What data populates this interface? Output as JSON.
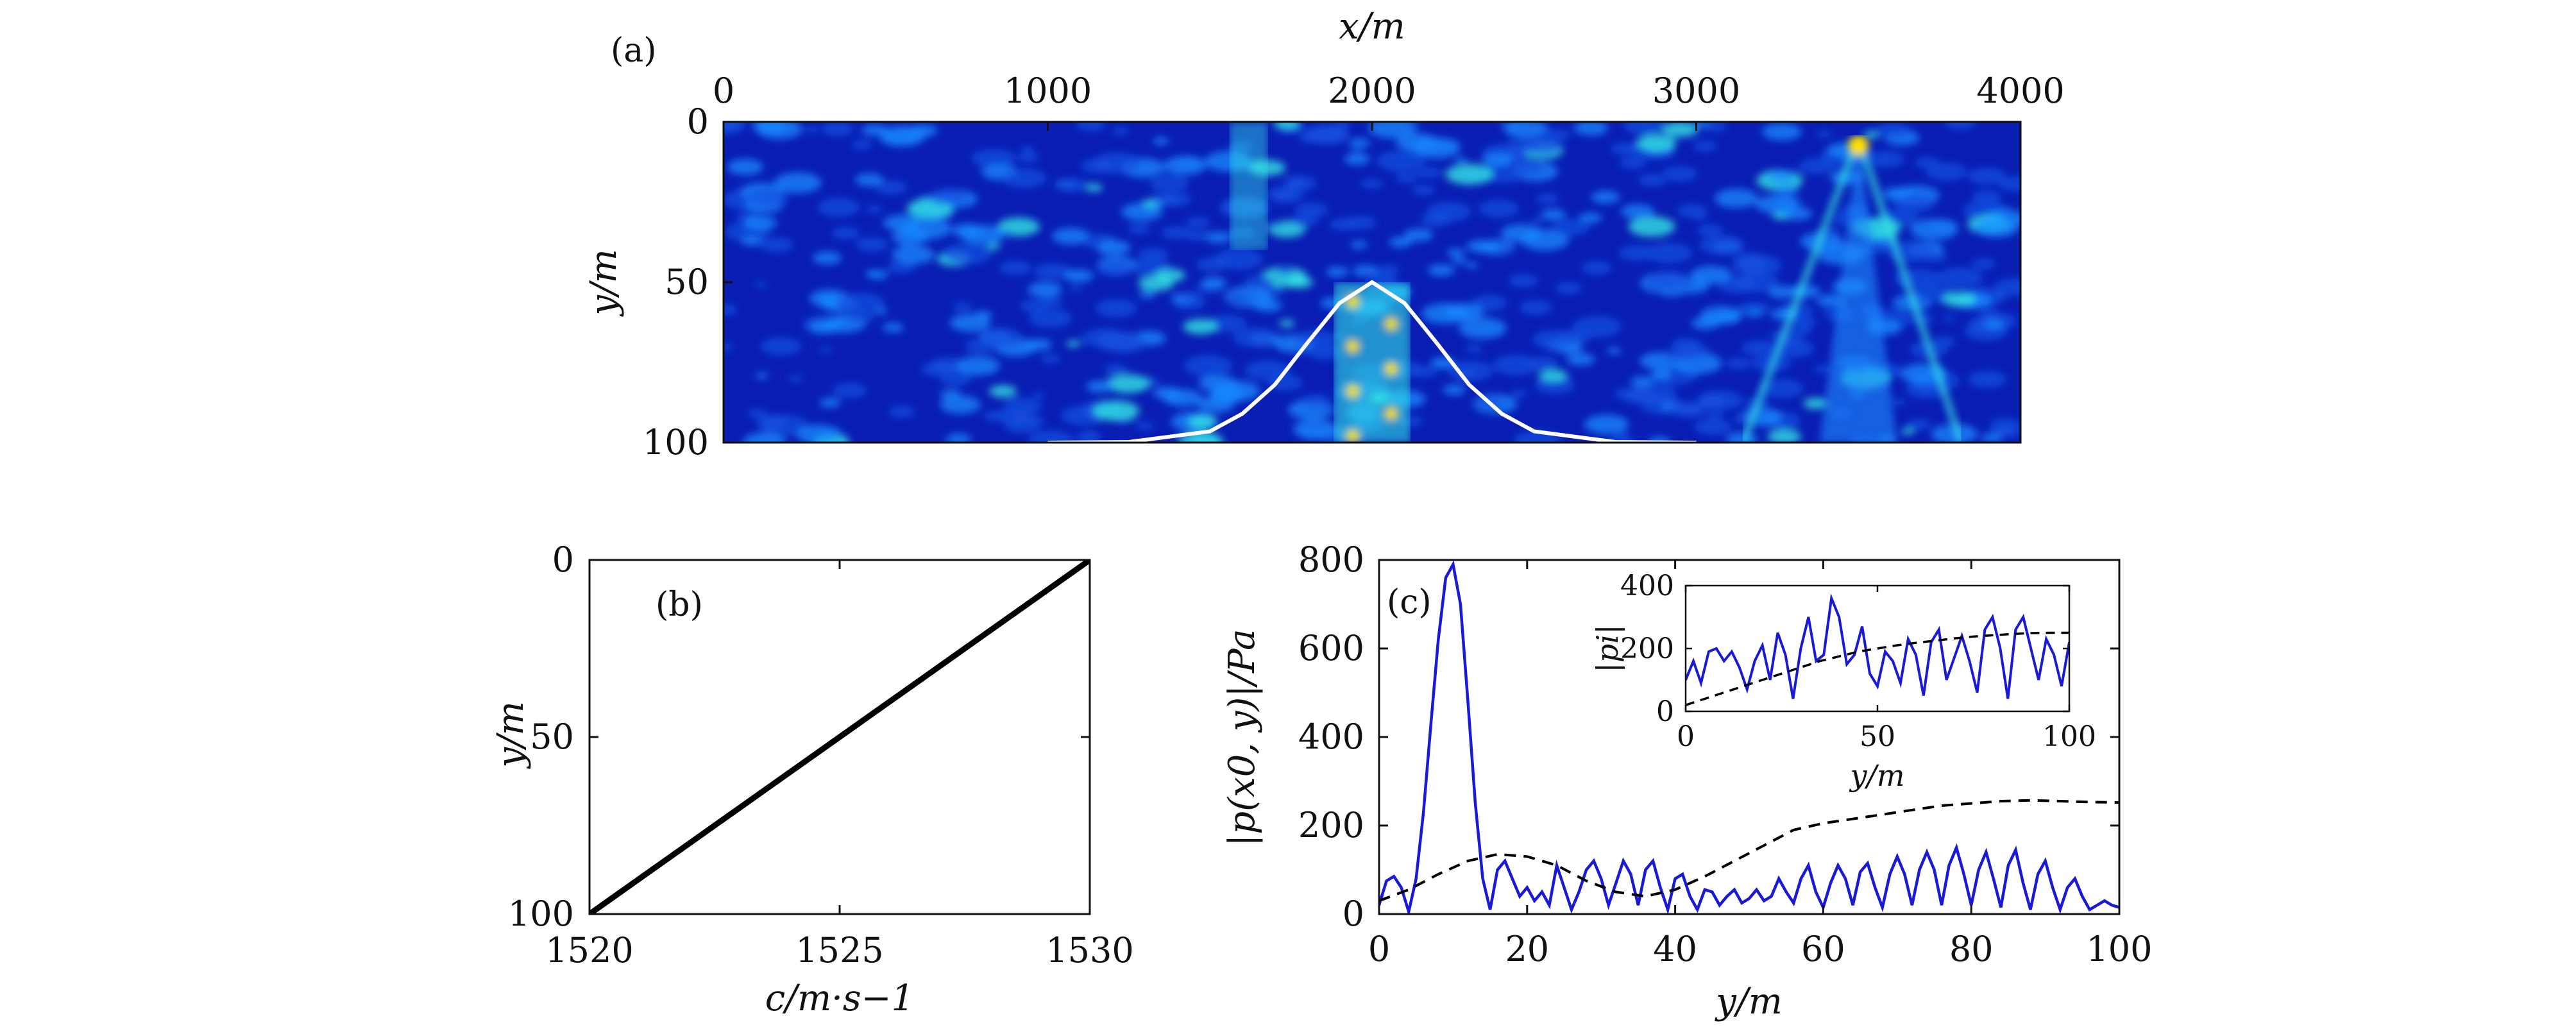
{
  "figure": {
    "panels": [
      {
        "id": "a",
        "label": "(a)"
      },
      {
        "id": "b",
        "label": "(b)"
      },
      {
        "id": "c",
        "label": "(c)"
      }
    ]
  },
  "colors": {
    "heatmap_low": "#0a1eb4",
    "heatmap_mid": "#1a8cff",
    "heatmap_high": "#36f0e6",
    "heatmap_hot": "#ffe000",
    "seamount_line": "#ffffff",
    "field_line": "#1a1ad6",
    "reference_line": "#000000",
    "profile_line": "#000000"
  },
  "chart_data": [
    {
      "id": "a",
      "type": "heatmap",
      "title": "",
      "xlabel": "x/m",
      "ylabel": "y/m",
      "x_axis_position": "top",
      "y_inverted": true,
      "xlim": [
        0,
        4000
      ],
      "ylim": [
        0,
        100
      ],
      "xticks": [
        0,
        1000,
        2000,
        3000,
        4000
      ],
      "yticks": [
        0,
        50,
        100
      ],
      "colormap": "jet",
      "overlay": {
        "type": "line",
        "shape": "gaussian",
        "color": "#ffffff",
        "peak_x": 2000,
        "peak_y": 50,
        "base_y": 100,
        "x": [
          1000,
          1250,
          1500,
          1600,
          1700,
          1800,
          1900,
          2000,
          2100,
          2200,
          2300,
          2400,
          2500,
          2750,
          3000
        ],
        "y": [
          100,
          99.8,
          96.5,
          91,
          82,
          69,
          56.5,
          50,
          56.5,
          69,
          82,
          91,
          96.5,
          99.8,
          100
        ]
      },
      "bright_features": [
        {
          "x": 2000,
          "y_range": [
            50,
            100
          ],
          "intensity": "high"
        },
        {
          "x": 3500,
          "y_range": [
            0,
            100
          ],
          "intensity": "high",
          "apex_y": 5
        },
        {
          "x": 1620,
          "y_range": [
            0,
            40
          ],
          "intensity": "medium"
        }
      ]
    },
    {
      "id": "b",
      "type": "line",
      "title": "",
      "xlabel": "c/m·s−1",
      "ylabel": "y/m",
      "y_inverted": true,
      "xlim": [
        1520,
        1530
      ],
      "ylim": [
        0,
        100
      ],
      "xticks": [
        1520,
        1525,
        1530
      ],
      "yticks": [
        0,
        50,
        100
      ],
      "series": [
        {
          "x": [
            1520,
            1530
          ],
          "y": [
            100,
            0
          ],
          "color": "#000000",
          "style": "solid"
        }
      ]
    },
    {
      "id": "c",
      "type": "line",
      "title": "",
      "xlabel": "y/m",
      "ylabel": "|p(x0, y)|/Pa",
      "xlim": [
        0,
        100
      ],
      "ylim": [
        0,
        800
      ],
      "xticks": [
        0,
        20,
        40,
        60,
        80,
        100
      ],
      "yticks": [
        0,
        200,
        400,
        600,
        800
      ],
      "series": [
        {
          "color": "#1a1ad6",
          "style": "solid",
          "x": [
            0,
            1,
            2,
            3,
            4,
            5,
            6,
            7,
            8,
            9,
            10,
            11,
            12,
            13,
            14,
            15,
            16,
            17,
            18,
            19,
            20,
            21,
            22,
            23,
            24,
            25,
            26,
            27,
            28,
            29,
            30,
            31,
            32,
            33,
            34,
            35,
            36,
            37,
            38,
            39,
            40,
            41,
            42,
            43,
            44,
            45,
            46,
            47,
            48,
            49,
            50,
            51,
            52,
            53,
            54,
            55,
            56,
            57,
            58,
            59,
            60,
            61,
            62,
            63,
            64,
            65,
            66,
            67,
            68,
            69,
            70,
            71,
            72,
            73,
            74,
            75,
            76,
            77,
            78,
            79,
            80,
            81,
            82,
            83,
            84,
            85,
            86,
            87,
            88,
            89,
            90,
            91,
            92,
            93,
            94,
            95,
            96,
            97,
            98,
            99,
            100
          ],
          "y": [
            20,
            75,
            85,
            60,
            5,
            80,
            230,
            430,
            620,
            760,
            790,
            700,
            480,
            250,
            80,
            10,
            100,
            120,
            80,
            40,
            60,
            30,
            50,
            20,
            110,
            60,
            10,
            50,
            100,
            120,
            80,
            20,
            70,
            120,
            90,
            20,
            100,
            120,
            60,
            10,
            80,
            90,
            40,
            10,
            55,
            50,
            20,
            40,
            55,
            25,
            35,
            55,
            30,
            40,
            80,
            50,
            25,
            80,
            110,
            50,
            15,
            70,
            110,
            80,
            20,
            95,
            115,
            60,
            15,
            90,
            130,
            90,
            20,
            100,
            140,
            100,
            20,
            110,
            150,
            90,
            20,
            100,
            140,
            80,
            15,
            110,
            145,
            70,
            10,
            90,
            120,
            60,
            10,
            60,
            80,
            40,
            10,
            20,
            30,
            20,
            15
          ]
        },
        {
          "color": "#000000",
          "style": "dashed",
          "x": [
            0,
            4,
            8,
            12,
            16,
            20,
            24,
            28,
            32,
            36,
            40,
            44,
            48,
            52,
            56,
            60,
            64,
            68,
            72,
            76,
            80,
            84,
            88,
            92,
            96,
            100
          ],
          "y": [
            30,
            55,
            90,
            120,
            135,
            130,
            110,
            75,
            50,
            40,
            55,
            85,
            120,
            155,
            190,
            205,
            215,
            225,
            235,
            245,
            250,
            255,
            257,
            255,
            253,
            252
          ]
        }
      ],
      "inset": {
        "xlabel": "y/m",
        "ylabel": "|pi|",
        "xlim": [
          0,
          100
        ],
        "ylim": [
          0,
          400
        ],
        "xticks": [
          0,
          50,
          100
        ],
        "yticks": [
          0,
          200,
          400
        ],
        "series": [
          {
            "color": "#1a1ad6",
            "style": "solid",
            "x": [
              0,
              2,
              4,
              6,
              8,
              10,
              12,
              14,
              16,
              18,
              20,
              22,
              24,
              26,
              28,
              30,
              32,
              34,
              36,
              38,
              40,
              42,
              44,
              46,
              48,
              50,
              52,
              54,
              56,
              58,
              60,
              62,
              64,
              66,
              68,
              70,
              72,
              74,
              76,
              78,
              80,
              82,
              84,
              86,
              88,
              90,
              92,
              94,
              96,
              98,
              100
            ],
            "y": [
              100,
              160,
              90,
              190,
              200,
              160,
              190,
              140,
              70,
              160,
              210,
              100,
              250,
              180,
              40,
              200,
              300,
              160,
              180,
              360,
              300,
              150,
              180,
              270,
              120,
              80,
              190,
              160,
              90,
              230,
              180,
              50,
              220,
              260,
              100,
              170,
              240,
              160,
              60,
              260,
              300,
              200,
              40,
              260,
              300,
              200,
              100,
              230,
              180,
              80,
              220
            ]
          },
          {
            "color": "#000000",
            "style": "dashed",
            "x": [
              0,
              5,
              10,
              15,
              20,
              25,
              30,
              35,
              40,
              45,
              50,
              55,
              60,
              65,
              70,
              75,
              80,
              85,
              90,
              95,
              100
            ],
            "y": [
              20,
              40,
              60,
              80,
              100,
              120,
              140,
              160,
              175,
              190,
              200,
              210,
              218,
              225,
              232,
              238,
              242,
              246,
              249,
              250,
              250
            ]
          }
        ]
      }
    }
  ]
}
